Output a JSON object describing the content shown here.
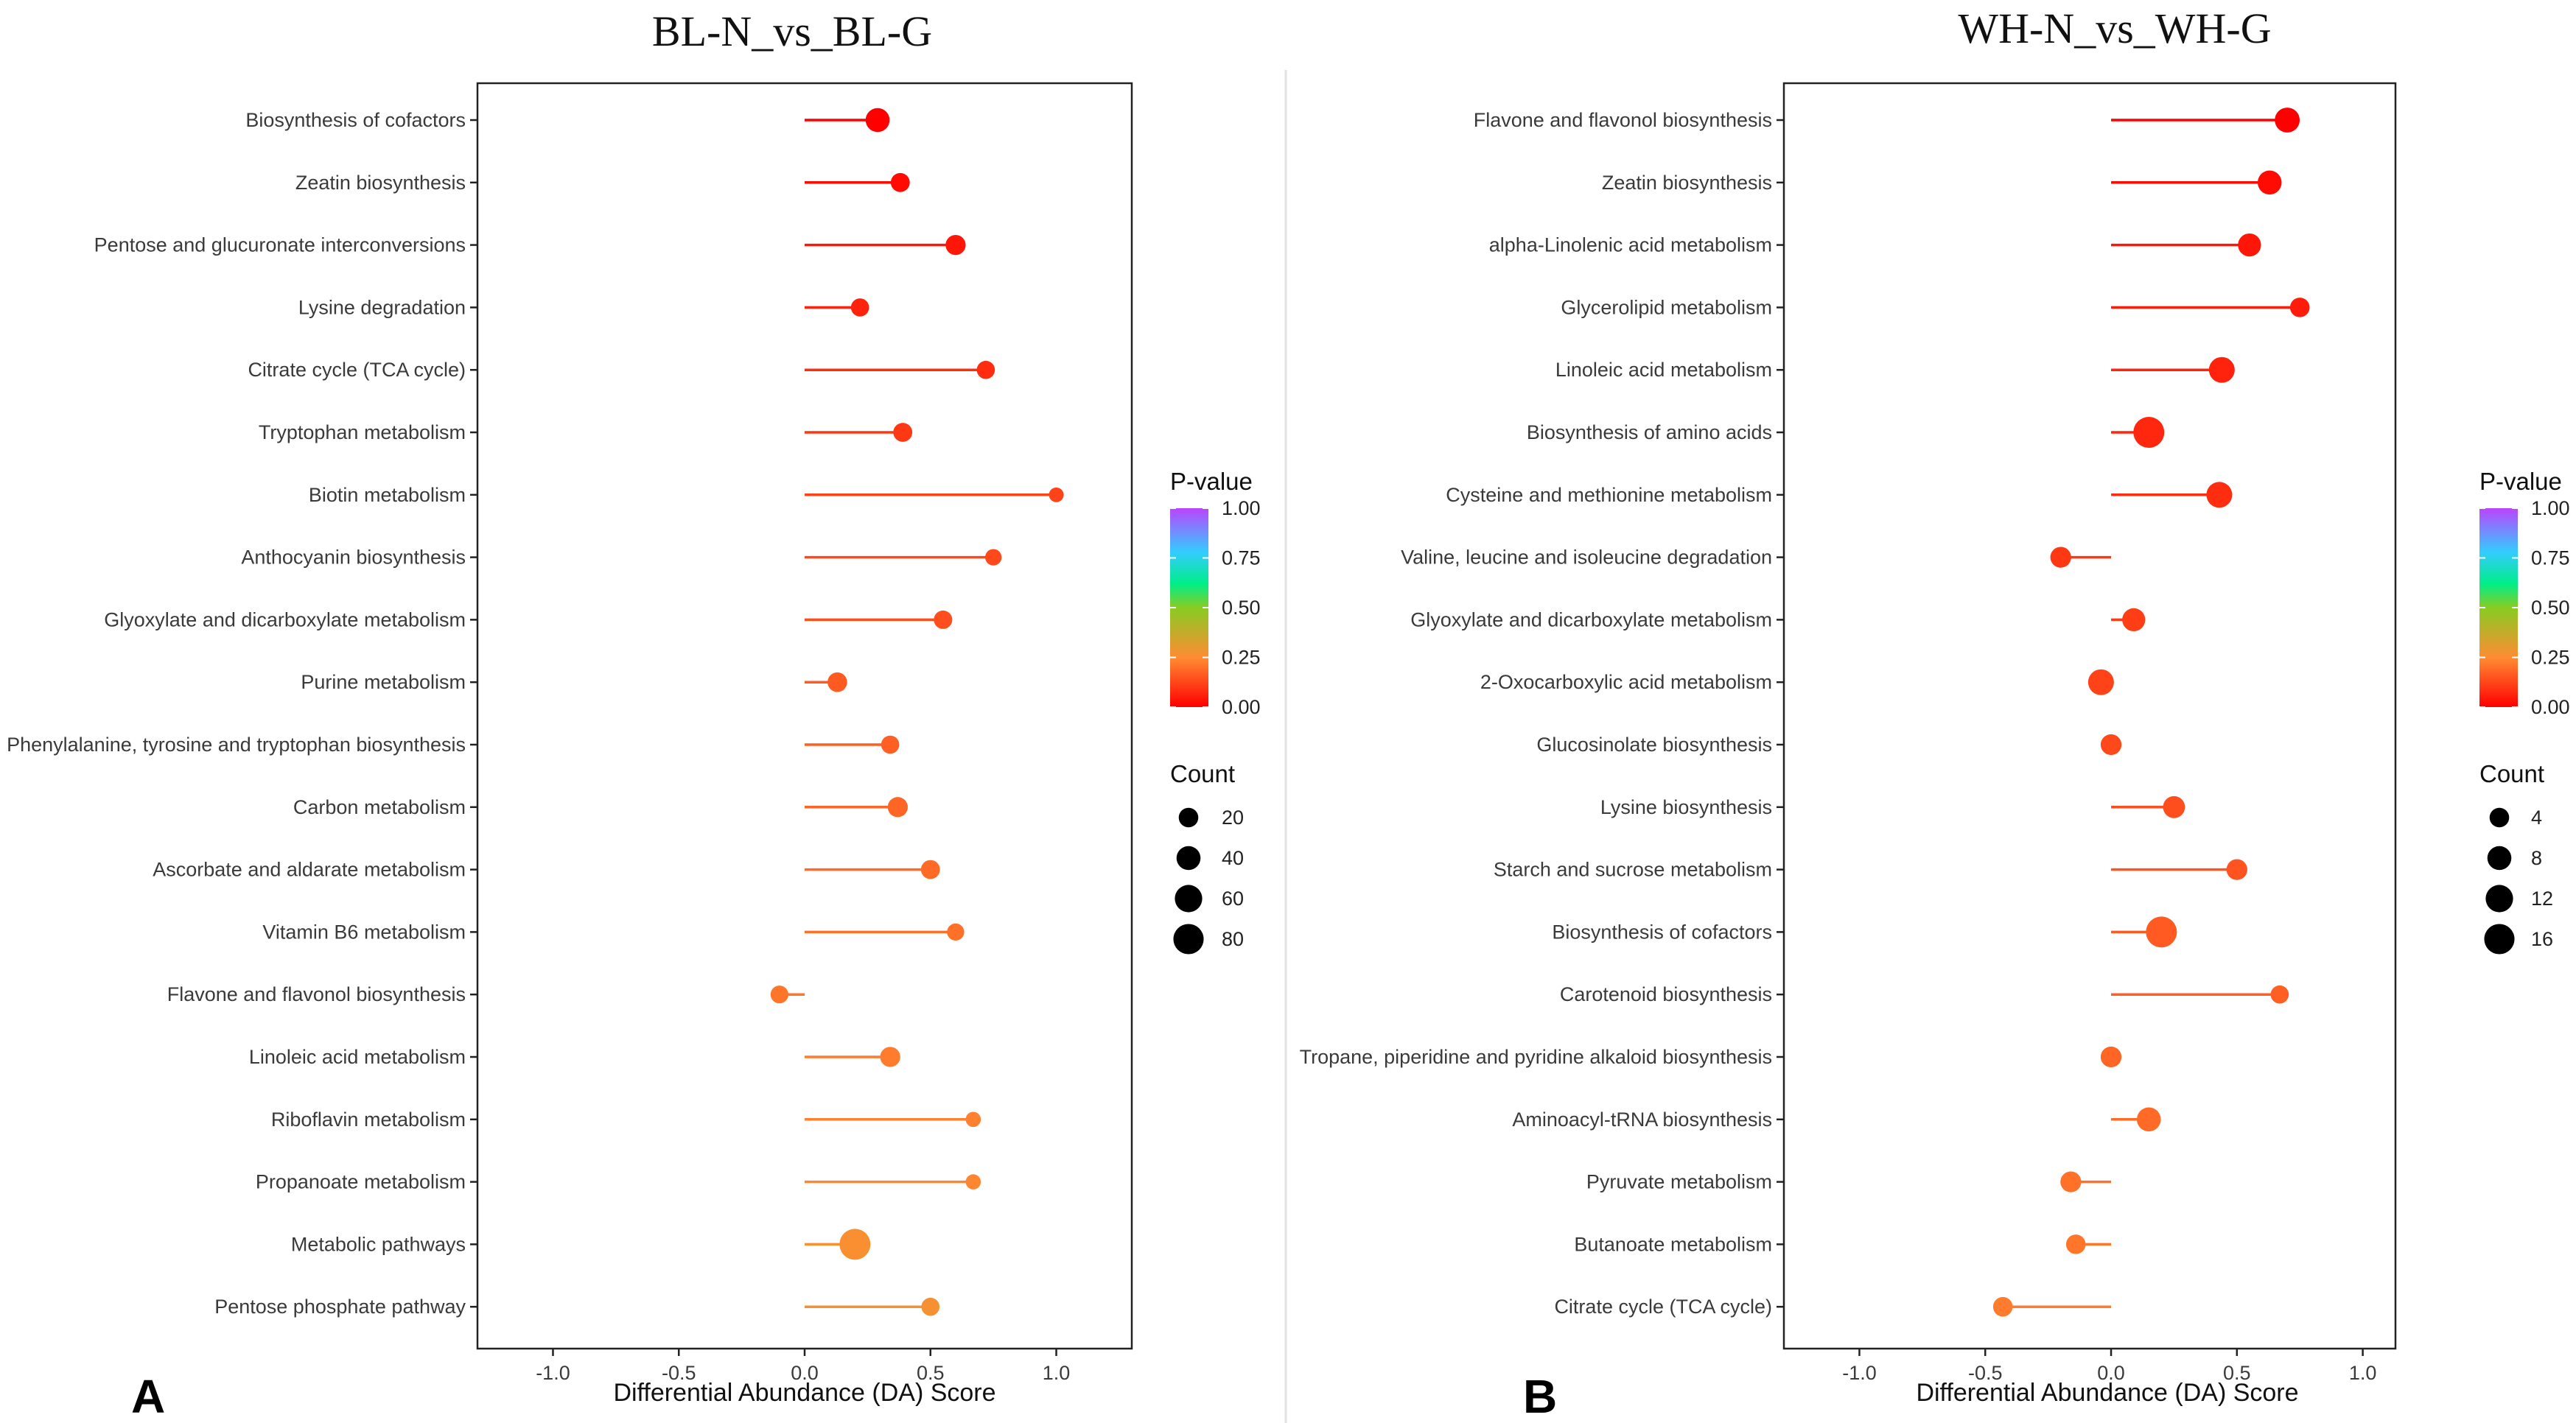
{
  "chart_data": [
    {
      "type": "lollipop",
      "panel_label": "A",
      "title": "BL-N_vs_BL-G",
      "xlabel": "Differential Abundance (DA) Score",
      "xlim": [
        -1.3,
        1.3
      ],
      "xticks": [
        "-1.0",
        "-0.5",
        "0.0",
        "0.5",
        "1.0"
      ],
      "xtick_values": [
        -1.0,
        -0.5,
        0.0,
        0.5,
        1.0
      ],
      "pathways": [
        {
          "name": "Biosynthesis of cofactors",
          "da": 0.29,
          "count": 40,
          "pvalue": 0.0
        },
        {
          "name": "Zeatin biosynthesis",
          "da": 0.38,
          "count": 18,
          "pvalue": 0.02
        },
        {
          "name": "Pentose and glucuronate interconversions",
          "da": 0.6,
          "count": 22,
          "pvalue": 0.04
        },
        {
          "name": "Lysine degradation",
          "da": 0.22,
          "count": 15,
          "pvalue": 0.06
        },
        {
          "name": "Citrate cycle (TCA cycle)",
          "da": 0.72,
          "count": 15,
          "pvalue": 0.08
        },
        {
          "name": "Tryptophan metabolism",
          "da": 0.39,
          "count": 18,
          "pvalue": 0.1
        },
        {
          "name": "Biotin metabolism",
          "da": 1.0,
          "count": 6,
          "pvalue": 0.12
        },
        {
          "name": "Anthocyanin biosynthesis",
          "da": 0.75,
          "count": 10,
          "pvalue": 0.13
        },
        {
          "name": "Glyoxylate and dicarboxylate metabolism",
          "da": 0.55,
          "count": 16,
          "pvalue": 0.14
        },
        {
          "name": "Purine metabolism",
          "da": 0.13,
          "count": 20,
          "pvalue": 0.16
        },
        {
          "name": "Phenylalanine, tyrosine and tryptophan biosynthesis",
          "da": 0.34,
          "count": 15,
          "pvalue": 0.17
        },
        {
          "name": "Carbon metabolism",
          "da": 0.37,
          "count": 22,
          "pvalue": 0.18
        },
        {
          "name": "Ascorbate and aldarate metabolism",
          "da": 0.5,
          "count": 18,
          "pvalue": 0.19
        },
        {
          "name": "Vitamin B6 metabolism",
          "da": 0.6,
          "count": 12,
          "pvalue": 0.2
        },
        {
          "name": "Flavone and flavonol biosynthesis",
          "da": -0.1,
          "count": 14,
          "pvalue": 0.21
        },
        {
          "name": "Linoleic acid metabolism",
          "da": 0.34,
          "count": 22,
          "pvalue": 0.22
        },
        {
          "name": "Riboflavin metabolism",
          "da": 0.67,
          "count": 7,
          "pvalue": 0.23
        },
        {
          "name": "Propanoate metabolism",
          "da": 0.67,
          "count": 7,
          "pvalue": 0.24
        },
        {
          "name": "Metabolic pathways",
          "da": 0.2,
          "count": 85,
          "pvalue": 0.26
        },
        {
          "name": "Pentose phosphate pathway",
          "da": 0.5,
          "count": 15,
          "pvalue": 0.27
        }
      ],
      "legend": {
        "pvalue_title": "P-value",
        "pvalue_ticks": [
          "1.00",
          "0.75",
          "0.50",
          "0.25",
          "0.00"
        ],
        "count_title": "Count",
        "count_ticks": [
          "20",
          "40",
          "60",
          "80"
        ],
        "count_values": [
          20,
          40,
          60,
          80
        ]
      }
    },
    {
      "type": "lollipop",
      "panel_label": "B",
      "title": "WH-N_vs_WH-G",
      "xlabel": "Differential Abundance (DA) Score",
      "xlim": [
        -1.3,
        1.13
      ],
      "xticks": [
        "-1.0",
        "-0.5",
        "0.0",
        "0.5",
        "1.0"
      ],
      "xtick_values": [
        -1.0,
        -0.5,
        0.0,
        0.5,
        1.0
      ],
      "pathways": [
        {
          "name": "Flavone and flavonol biosynthesis",
          "da": 0.7,
          "count": 9,
          "pvalue": 0.0
        },
        {
          "name": "Zeatin biosynthesis",
          "da": 0.63,
          "count": 8,
          "pvalue": 0.02
        },
        {
          "name": "alpha-Linolenic acid metabolism",
          "da": 0.55,
          "count": 7,
          "pvalue": 0.04
        },
        {
          "name": "Glycerolipid metabolism",
          "da": 0.75,
          "count": 4,
          "pvalue": 0.05
        },
        {
          "name": "Linoleic acid metabolism",
          "da": 0.44,
          "count": 10,
          "pvalue": 0.06
        },
        {
          "name": "Biosynthesis of amino acids",
          "da": 0.15,
          "count": 17,
          "pvalue": 0.07
        },
        {
          "name": "Cysteine and methionine metabolism",
          "da": 0.43,
          "count": 10,
          "pvalue": 0.08
        },
        {
          "name": "Valine, leucine and isoleucine degradation",
          "da": -0.2,
          "count": 5,
          "pvalue": 0.1
        },
        {
          "name": "Glyoxylate and dicarboxylate metabolism",
          "da": 0.09,
          "count": 7,
          "pvalue": 0.11
        },
        {
          "name": "2-Oxocarboxylic acid metabolism",
          "da": -0.04,
          "count": 10,
          "pvalue": 0.12
        },
        {
          "name": "Glucosinolate biosynthesis",
          "da": 0.0,
          "count": 5,
          "pvalue": 0.13
        },
        {
          "name": "Lysine biosynthesis",
          "da": 0.25,
          "count": 6,
          "pvalue": 0.14
        },
        {
          "name": "Starch and sucrose metabolism",
          "da": 0.5,
          "count": 5,
          "pvalue": 0.15
        },
        {
          "name": "Biosynthesis of cofactors",
          "da": 0.2,
          "count": 17,
          "pvalue": 0.16
        },
        {
          "name": "Carotenoid biosynthesis",
          "da": 0.67,
          "count": 3,
          "pvalue": 0.17
        },
        {
          "name": "Tropane, piperidine and pyridine alkaloid biosynthesis",
          "da": 0.0,
          "count": 5,
          "pvalue": 0.18
        },
        {
          "name": "Aminoacyl-tRNA biosynthesis",
          "da": 0.15,
          "count": 8,
          "pvalue": 0.19
        },
        {
          "name": "Pyruvate metabolism",
          "da": -0.16,
          "count": 5,
          "pvalue": 0.2
        },
        {
          "name": "Butanoate metabolism",
          "da": -0.14,
          "count": 4,
          "pvalue": 0.21
        },
        {
          "name": "Citrate cycle (TCA cycle)",
          "da": -0.43,
          "count": 4,
          "pvalue": 0.22
        }
      ],
      "legend": {
        "pvalue_title": "P-value",
        "pvalue_ticks": [
          "1.00",
          "0.75",
          "0.50",
          "0.25",
          "0.00"
        ],
        "count_title": "Count",
        "count_ticks": [
          "4",
          "8",
          "12",
          "16"
        ],
        "count_values": [
          4,
          8,
          12,
          16
        ]
      }
    }
  ],
  "colors": {
    "pvalue_gradient": [
      "#ff0000",
      "#ff8c33",
      "#88cc22",
      "#00ee88",
      "#33ccff",
      "#bb44ff"
    ]
  }
}
